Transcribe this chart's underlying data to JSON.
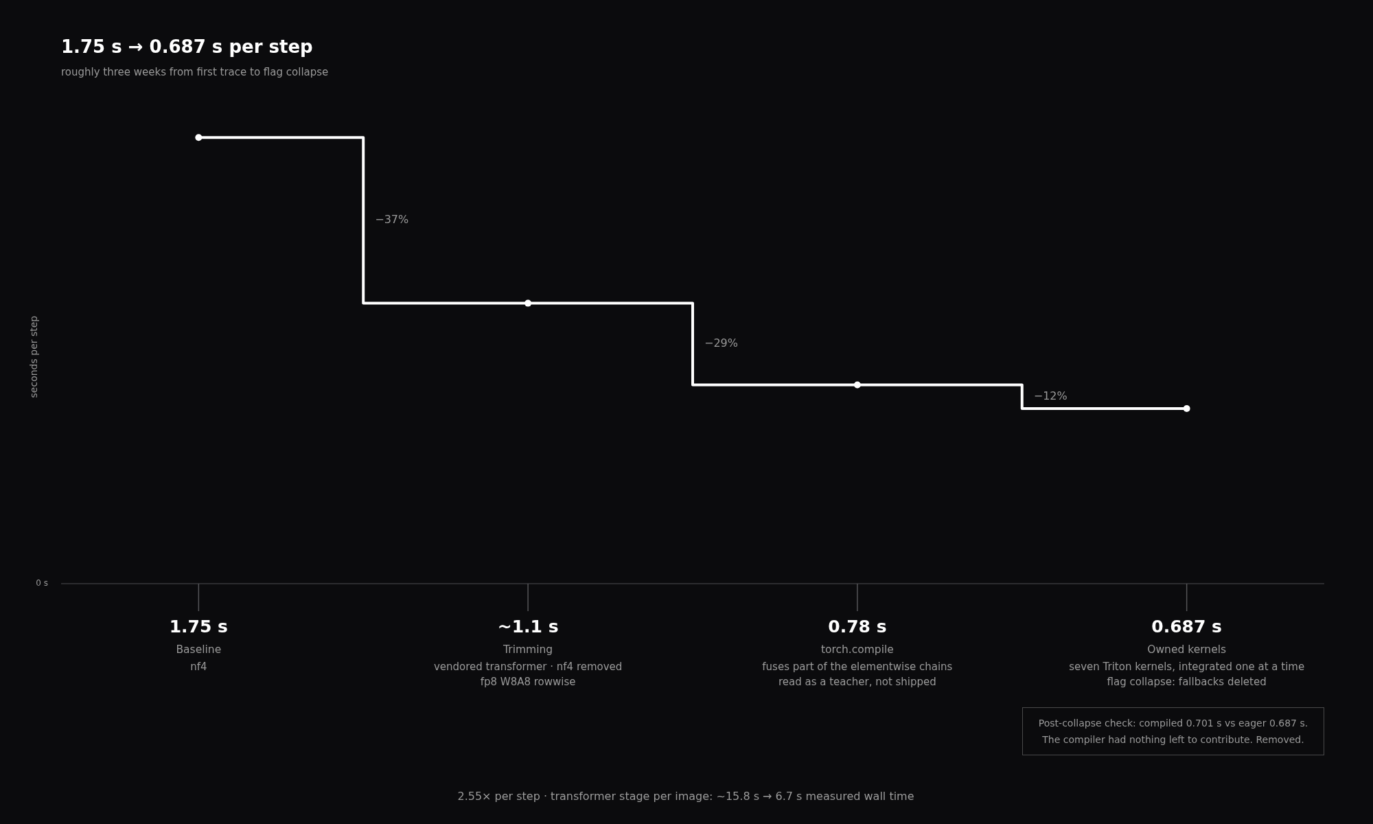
{
  "chart_data": {
    "type": "step",
    "title": "1.75 s → 0.687 s per step",
    "subtitle": "roughly three weeks from first trace to flag collapse",
    "ylabel": "seconds per step",
    "categories": [
      "Baseline\nnf4",
      "Trimming\nvendored transformer · nf4 removed\nfp8 W8A8 rowwise",
      "torch.compile\nfuses part of the elementwise chains\nread as a teacher, not shipped",
      "Owned kernels\nseven Triton kernels, integrated one at a time\nflag collapse: fallbacks deleted"
    ],
    "values": [
      1.75,
      1.1,
      0.78,
      0.687
    ],
    "color": "#ffffff",
    "value_labels": [
      "1.75 s",
      "~1.1 s",
      "0.78 s",
      "0.687 s"
    ],
    "marker": "circle",
    "line_style": "solid",
    "ref_lines": [
      {
        "axis": "y",
        "value": 0,
        "label": "0 s",
        "color": "#38383b"
      }
    ],
    "annotations": [
      "−37%",
      "−29%",
      "−12%",
      "Post-collapse check: compiled 0.701 s vs eager 0.687 s.\nThe compiler had nothing left to contribute. Removed.",
      "2.55× per step · transformer stage per image: ~15.8 s → 6.7 s measured wall time"
    ]
  }
}
